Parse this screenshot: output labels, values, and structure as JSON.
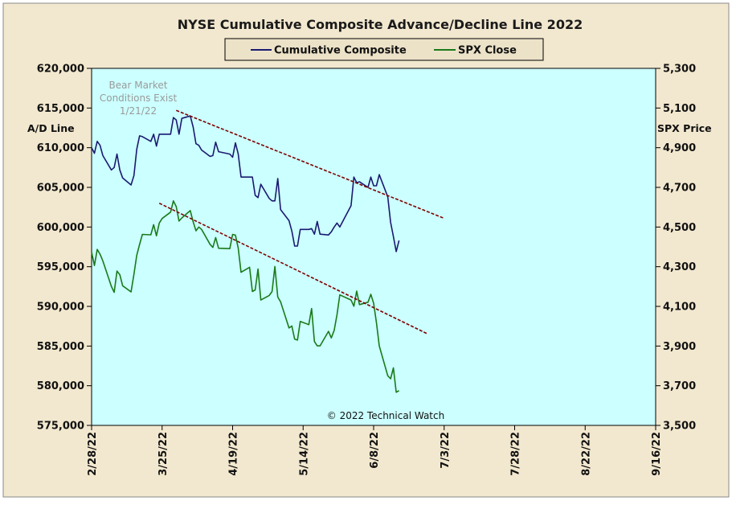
{
  "chart_data": {
    "type": "line",
    "title": "NYSE Cumulative  Composite  Advance/Decline  Line  2022",
    "y_left_label": "A/D Line",
    "y_right_label": "SPX Price",
    "y_left_range": [
      575000,
      620000
    ],
    "y_right_range": [
      3500,
      5300
    ],
    "y_left_ticks": [
      "620,000",
      "615,000",
      "610,000",
      "605,000",
      "600,000",
      "595,000",
      "590,000",
      "585,000",
      "580,000",
      "575,000"
    ],
    "y_right_ticks": [
      "5,300",
      "5,100",
      "4,900",
      "4,700",
      "4,500",
      "4,300",
      "4,100",
      "3,900",
      "3,700",
      "3,500"
    ],
    "x_ticks": [
      "2/28/22",
      "3/25/22",
      "4/19/22",
      "5/14/22",
      "6/8/22",
      "7/3/22",
      "7/28/22",
      "8/22/22",
      "9/16/22"
    ],
    "legend_position": "top-center",
    "grid": false,
    "colors": {
      "cumulative": "#1a1a70",
      "spx": "#1a7a1a",
      "trend": "#800000",
      "plot_bg": "#ccffff",
      "frame_bg": "#f2e8cf"
    },
    "series": [
      {
        "name": "Cumulative Composite",
        "axis": "left",
        "x": [
          "2/28/22",
          "3/1/22",
          "3/2/22",
          "3/3/22",
          "3/4/22",
          "3/7/22",
          "3/8/22",
          "3/9/22",
          "3/10/22",
          "3/11/22",
          "3/14/22",
          "3/15/22",
          "3/16/22",
          "3/17/22",
          "3/18/22",
          "3/21/22",
          "3/22/22",
          "3/23/22",
          "3/24/22",
          "3/25/22",
          "3/28/22",
          "3/29/22",
          "3/30/22",
          "3/31/22",
          "4/1/22",
          "4/4/22",
          "4/5/22",
          "4/6/22",
          "4/7/22",
          "4/8/22",
          "4/11/22",
          "4/12/22",
          "4/13/22",
          "4/14/22",
          "4/18/22",
          "4/19/22",
          "4/20/22",
          "4/21/22",
          "4/22/22",
          "4/25/22",
          "4/26/22",
          "4/27/22",
          "4/28/22",
          "4/29/22",
          "5/2/22",
          "5/3/22",
          "5/4/22",
          "5/5/22",
          "5/6/22",
          "5/9/22",
          "5/10/22",
          "5/11/22",
          "5/12/22",
          "5/13/22",
          "5/16/22",
          "5/17/22",
          "5/18/22",
          "5/19/22",
          "5/20/22",
          "5/23/22",
          "5/24/22",
          "5/25/22",
          "5/26/22",
          "5/27/22",
          "5/31/22",
          "6/1/22",
          "6/2/22",
          "6/3/22",
          "6/6/22",
          "6/7/22",
          "6/8/22",
          "6/9/22",
          "6/10/22",
          "6/13/22",
          "6/14/22",
          "6/15/22",
          "6/16/22",
          "6/17/22"
        ],
        "values": [
          610000,
          609300,
          610800,
          610300,
          609000,
          607200,
          607500,
          609200,
          607200,
          606200,
          605300,
          606500,
          609800,
          611500,
          611400,
          610800,
          611700,
          610200,
          611700,
          611700,
          611700,
          613800,
          613500,
          611700,
          613700,
          614000,
          612600,
          610500,
          610300,
          609700,
          608900,
          609000,
          610700,
          609500,
          609200,
          608800,
          610600,
          609200,
          606300,
          606300,
          606300,
          604000,
          603700,
          605400,
          603600,
          603300,
          603300,
          606100,
          602200,
          600800,
          599500,
          597600,
          597600,
          599700,
          599700,
          599800,
          599100,
          600700,
          599100,
          599000,
          599400,
          600000,
          600500,
          600000,
          602700,
          606300,
          605600,
          605700,
          605000,
          606300,
          605200,
          605200,
          606600,
          603800,
          600600,
          598800,
          596900,
          598300
        ]
      },
      {
        "name": "SPX Close",
        "axis": "right",
        "x": [
          "2/28/22",
          "3/1/22",
          "3/2/22",
          "3/3/22",
          "3/4/22",
          "3/7/22",
          "3/8/22",
          "3/9/22",
          "3/10/22",
          "3/11/22",
          "3/14/22",
          "3/15/22",
          "3/16/22",
          "3/17/22",
          "3/18/22",
          "3/21/22",
          "3/22/22",
          "3/23/22",
          "3/24/22",
          "3/25/22",
          "3/28/22",
          "3/29/22",
          "3/30/22",
          "3/31/22",
          "4/1/22",
          "4/4/22",
          "4/5/22",
          "4/6/22",
          "4/7/22",
          "4/8/22",
          "4/11/22",
          "4/12/22",
          "4/13/22",
          "4/14/22",
          "4/18/22",
          "4/19/22",
          "4/20/22",
          "4/21/22",
          "4/22/22",
          "4/25/22",
          "4/26/22",
          "4/27/22",
          "4/28/22",
          "4/29/22",
          "5/2/22",
          "5/3/22",
          "5/4/22",
          "5/5/22",
          "5/6/22",
          "5/9/22",
          "5/10/22",
          "5/11/22",
          "5/12/22",
          "5/13/22",
          "5/16/22",
          "5/17/22",
          "5/18/22",
          "5/19/22",
          "5/20/22",
          "5/23/22",
          "5/24/22",
          "5/25/22",
          "5/26/22",
          "5/27/22",
          "5/31/22",
          "6/1/22",
          "6/2/22",
          "6/3/22",
          "6/6/22",
          "6/7/22",
          "6/8/22",
          "6/9/22",
          "6/10/22",
          "6/13/22",
          "6/14/22",
          "6/15/22",
          "6/16/22",
          "6/17/22"
        ],
        "values": [
          4374,
          4306,
          4387,
          4363,
          4329,
          4201,
          4171,
          4278,
          4260,
          4204,
          4173,
          4262,
          4358,
          4412,
          4463,
          4461,
          4512,
          4456,
          4520,
          4543,
          4575,
          4632,
          4603,
          4530,
          4546,
          4583,
          4526,
          4481,
          4500,
          4488,
          4413,
          4397,
          4447,
          4393,
          4391,
          4463,
          4459,
          4393,
          4272,
          4297,
          4175,
          4183,
          4288,
          4132,
          4155,
          4175,
          4301,
          4147,
          4123,
          3991,
          4001,
          3935,
          3930,
          4024,
          4008,
          4089,
          3923,
          3901,
          3901,
          3974,
          3941,
          3979,
          4058,
          4158,
          4132,
          4101,
          4177,
          4109,
          4121,
          4161,
          4116,
          4018,
          3901,
          3750,
          3735,
          3790,
          3667,
          3675
        ]
      },
      {
        "name": "trend-upper",
        "axis": "left",
        "x": [
          "3/30/22",
          "7/3/22"
        ],
        "values": [
          614700,
          601100
        ]
      },
      {
        "name": "trend-lower",
        "axis": "right",
        "x": [
          "3/24/22",
          "6/27/22"
        ],
        "values": [
          4620,
          3962
        ]
      }
    ],
    "annotations": {
      "bear_market": [
        "Bear Market",
        "Conditions  Exist",
        "1/21/22"
      ],
      "copyright": "© 2022 Technical  Watch"
    }
  }
}
